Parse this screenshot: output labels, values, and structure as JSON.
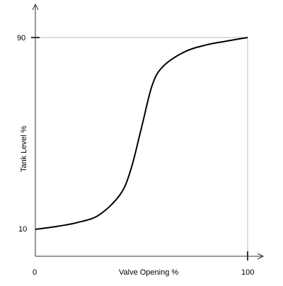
{
  "chart_data": {
    "type": "line",
    "title": "",
    "xlabel": "Valve Opening %",
    "ylabel": "Tank Level %",
    "xticks": [
      "0",
      "100"
    ],
    "yticks": [
      "10",
      "90"
    ],
    "xlim": [
      0,
      100
    ],
    "ylim": [
      10,
      90
    ],
    "grid": false,
    "series": [
      {
        "color": "#000000",
        "points": [
          {
            "x": 0,
            "y": 10.0
          },
          {
            "x": 10,
            "y": 11.2
          },
          {
            "x": 20,
            "y": 12.9
          },
          {
            "x": 30,
            "y": 16.0
          },
          {
            "x": 40,
            "y": 24.6
          },
          {
            "x": 45,
            "y": 35.0
          },
          {
            "x": 50,
            "y": 52.4
          },
          {
            "x": 55,
            "y": 70.0
          },
          {
            "x": 60,
            "y": 77.8
          },
          {
            "x": 70,
            "y": 83.9
          },
          {
            "x": 80,
            "y": 86.8
          },
          {
            "x": 90,
            "y": 88.5
          },
          {
            "x": 100,
            "y": 90.0
          }
        ]
      }
    ]
  }
}
